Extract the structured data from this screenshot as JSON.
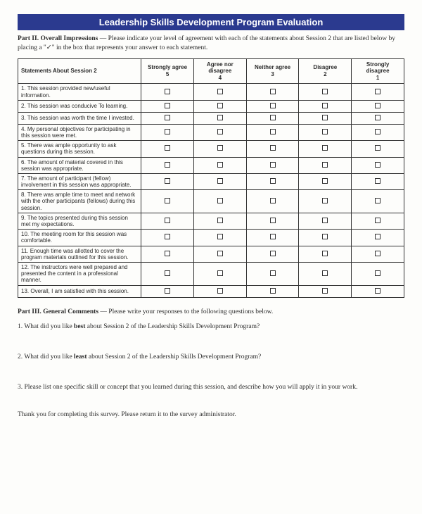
{
  "title": "Leadership Skills Development Program Evaluation",
  "part2_label": "Part II. Overall Impressions",
  "part2_instr": " — Please indicate your level of agreement with each of the statements about Session 2 that are listed below by placing a \"✓\" in the box that represents your answer to each statement.",
  "table": {
    "header_stmt": "Statements About Session 2",
    "cols": [
      {
        "label": "Strongly agree",
        "num": "5"
      },
      {
        "label": "Agree nor disagree",
        "num": "4"
      },
      {
        "label": "Neither agree",
        "num": "3"
      },
      {
        "label": "Disagree",
        "num": "2"
      },
      {
        "label": "Strongly disagree",
        "num": "1"
      }
    ],
    "rows": [
      "1. This session provided new/useful information.",
      "2. This session was conducive To learning.",
      "3. This session was worth the time I invested.",
      "4. My personal objectives for participating in this session were met.",
      "5. There was ample opportunity to ask questions during this session.",
      "6. The amount of material covered in this session was appropriate.",
      "7. The amount of participant (fellow) involvement in this session was appropriate.",
      "8. There was ample time to meet and network with the other participants (fellows) during this session.",
      "9. The topics presented during this session met my expectations.",
      "10. The meeting room for this session was comfortable.",
      "11. Enough time was allotted to cover the program materials outlined for this session.",
      "12. The instructors were well prepared and presented the content in a professional manner.",
      "13. Overall, I am satisfied with this session."
    ]
  },
  "part3_label": "Part III. General Comments",
  "part3_instr": " — Please write your responses to the following questions below.",
  "q1a": "1. What did you like ",
  "q1b": "best",
  "q1c": " about Session 2 of the Leadership Skills Development Program?",
  "q2a": "2. What did you like ",
  "q2b": "least",
  "q2c": " about Session 2 of the Leadership Skills Development Program?",
  "q3": "3. Please list one specific skill or concept that you learned during this session, and describe how you will apply it in your work.",
  "thanks": "Thank you for completing this survey.  Please return it to the survey administrator."
}
